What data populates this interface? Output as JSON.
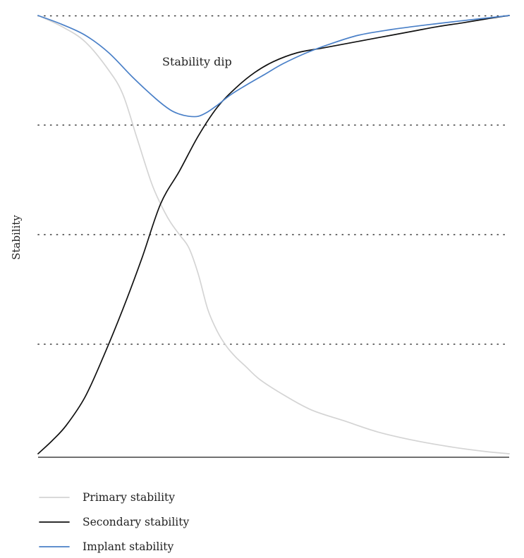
{
  "chart_data": {
    "type": "line",
    "title": "",
    "xlabel": "",
    "ylabel": "Stability",
    "xlim": [
      0,
      100
    ],
    "ylim": [
      0,
      100
    ],
    "y_gridlines": [
      25,
      50,
      75,
      100
    ],
    "grid": "horizontal dotted",
    "legend_position": "bottom-left",
    "annotations": [
      {
        "text": "Stability dip",
        "x": 34,
        "y": 90
      }
    ],
    "series": [
      {
        "name": "Primary stability",
        "color": "#d4d4d4",
        "x": [
          0,
          5,
          10,
          15,
          18,
          21,
          24,
          26,
          28,
          30,
          32,
          34,
          36,
          38,
          40,
          42,
          44,
          47,
          52,
          58,
          65,
          72,
          80,
          88,
          95,
          100
        ],
        "y": [
          100,
          97.5,
          94,
          87.5,
          82,
          72,
          62,
          57,
          53,
          50,
          47,
          41,
          33,
          28,
          24.5,
          22,
          20,
          17,
          13.5,
          10,
          7.5,
          5,
          3,
          1.5,
          0.5,
          0
        ]
      },
      {
        "name": "Secondary stability",
        "color": "#111111",
        "x": [
          0,
          3,
          6,
          10,
          14,
          18,
          22,
          26,
          30,
          34,
          38,
          42,
          46,
          50,
          55,
          60,
          65,
          70,
          75,
          80,
          85,
          90,
          95,
          100
        ],
        "y": [
          0,
          3,
          6.5,
          13,
          22.5,
          33,
          44.5,
          57,
          64.5,
          72.5,
          79,
          83.5,
          87,
          89.5,
          91.5,
          92.5,
          93.5,
          94.5,
          95.5,
          96.5,
          97.5,
          98.3,
          99.2,
          100
        ]
      },
      {
        "name": "Implant stability",
        "color": "#4a80c8",
        "x": [
          0,
          5,
          10,
          15,
          20,
          25,
          28,
          30,
          32,
          34,
          36,
          38,
          41,
          44,
          48,
          52,
          57,
          62,
          68,
          75,
          82,
          90,
          95,
          100
        ],
        "y": [
          100,
          98,
          95.5,
          91.5,
          86,
          81,
          78.5,
          77.5,
          77,
          77,
          78,
          79.5,
          82,
          84,
          86.5,
          89,
          91.5,
          93.5,
          95.5,
          96.8,
          97.8,
          98.8,
          99.4,
          100
        ]
      }
    ]
  }
}
